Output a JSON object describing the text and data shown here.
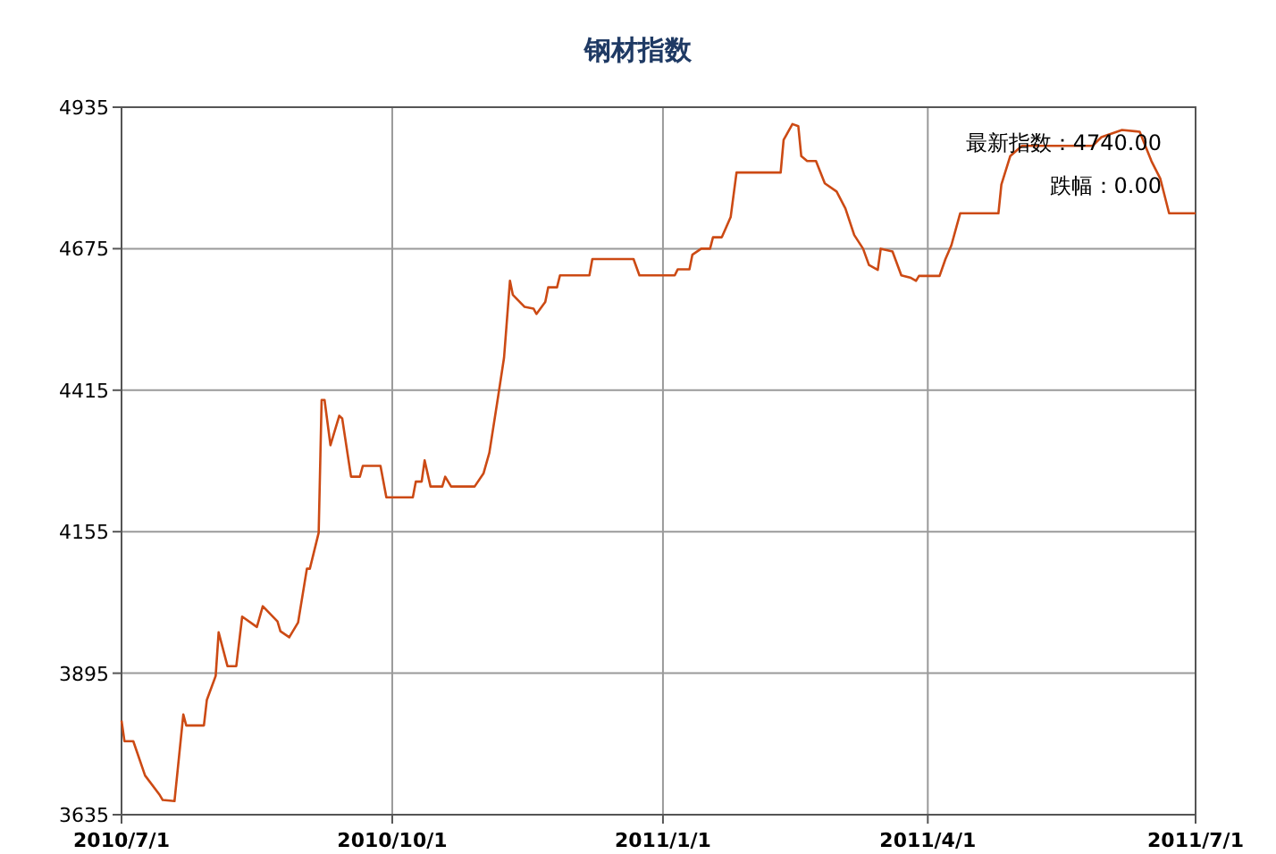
{
  "chart_data": {
    "type": "line",
    "title": "钢材指数",
    "x": [
      "2010-07-01",
      "2010-07-02",
      "2010-07-05",
      "2010-07-09",
      "2010-07-14",
      "2010-07-15",
      "2010-07-19",
      "2010-07-22",
      "2010-07-23",
      "2010-07-29",
      "2010-07-30",
      "2010-08-02",
      "2010-08-03",
      "2010-08-06",
      "2010-08-09",
      "2010-08-11",
      "2010-08-16",
      "2010-08-18",
      "2010-08-23",
      "2010-08-24",
      "2010-08-27",
      "2010-08-30",
      "2010-09-02",
      "2010-09-03",
      "2010-09-06",
      "2010-09-07",
      "2010-09-08",
      "2010-09-10",
      "2010-09-13",
      "2010-09-14",
      "2010-09-17",
      "2010-09-20",
      "2010-09-21",
      "2010-09-27",
      "2010-09-29",
      "2010-10-08",
      "2010-10-09",
      "2010-10-11",
      "2010-10-12",
      "2010-10-14",
      "2010-10-18",
      "2010-10-19",
      "2010-10-21",
      "2010-10-29",
      "2010-11-01",
      "2010-11-03",
      "2010-11-06",
      "2010-11-08",
      "2010-11-10",
      "2010-11-11",
      "2010-11-15",
      "2010-11-18",
      "2010-11-19",
      "2010-11-22",
      "2010-11-23",
      "2010-11-26",
      "2010-11-27",
      "2010-12-07",
      "2010-12-08",
      "2010-12-22",
      "2010-12-24",
      "2011-01-05",
      "2011-01-06",
      "2011-01-10",
      "2011-01-11",
      "2011-01-14",
      "2011-01-17",
      "2011-01-18",
      "2011-01-21",
      "2011-01-24",
      "2011-01-26",
      "2011-02-10",
      "2011-02-11",
      "2011-02-14",
      "2011-02-16",
      "2011-02-17",
      "2011-02-19",
      "2011-02-22",
      "2011-02-25",
      "2011-03-01",
      "2011-03-04",
      "2011-03-07",
      "2011-03-10",
      "2011-03-12",
      "2011-03-15",
      "2011-03-16",
      "2011-03-20",
      "2011-03-23",
      "2011-03-26",
      "2011-03-28",
      "2011-03-29",
      "2011-04-05",
      "2011-04-07",
      "2011-04-09",
      "2011-04-12",
      "2011-04-25",
      "2011-04-26",
      "2011-04-29",
      "2011-05-03",
      "2011-05-27",
      "2011-05-30",
      "2011-06-06",
      "2011-06-12",
      "2011-06-16",
      "2011-06-19",
      "2011-06-22",
      "2011-07-01"
    ],
    "series": [
      {
        "color": "#cc4a14",
        "values": [
          3808,
          3770,
          3770,
          3707,
          3671,
          3662,
          3660,
          3819,
          3799,
          3799,
          3846,
          3890,
          3970,
          3908,
          3908,
          3999,
          3980,
          4018,
          3990,
          3972,
          3961,
          3988,
          4087,
          4087,
          4153,
          4397,
          4397,
          4314,
          4368,
          4363,
          4256,
          4256,
          4276,
          4276,
          4218,
          4218,
          4247,
          4247,
          4286,
          4238,
          4238,
          4256,
          4238,
          4238,
          4262,
          4300,
          4404,
          4475,
          4616,
          4590,
          4568,
          4565,
          4555,
          4577,
          4604,
          4604,
          4626,
          4626,
          4656,
          4656,
          4626,
          4626,
          4637,
          4637,
          4664,
          4675,
          4675,
          4696,
          4696,
          4733,
          4815,
          4815,
          4875,
          4904,
          4900,
          4845,
          4836,
          4836,
          4795,
          4780,
          4749,
          4700,
          4675,
          4645,
          4636,
          4675,
          4670,
          4626,
          4622,
          4616,
          4625,
          4625,
          4656,
          4681,
          4740,
          4740,
          4793,
          4845,
          4864,
          4864,
          4880,
          4893,
          4890,
          4836,
          4804,
          4740,
          4740
        ]
      }
    ],
    "xlim": [
      "2010-07-01",
      "2011-07-01"
    ],
    "xticks": [
      {
        "value": "2010-07-01",
        "label": "2010/7/1"
      },
      {
        "value": "2010-10-01",
        "label": "2010/10/1"
      },
      {
        "value": "2011-01-01",
        "label": "2011/1/1"
      },
      {
        "value": "2011-04-01",
        "label": "2011/4/1"
      },
      {
        "value": "2011-07-01",
        "label": "2011/7/1"
      }
    ],
    "ylim": [
      3635,
      4935
    ],
    "yticks": [
      3635,
      3895,
      4155,
      4415,
      4675,
      4935
    ],
    "grid": true,
    "marker": "none",
    "line_style": "solid",
    "annotations": [
      "最新指数：4740.00",
      "跌幅：0.00"
    ]
  }
}
